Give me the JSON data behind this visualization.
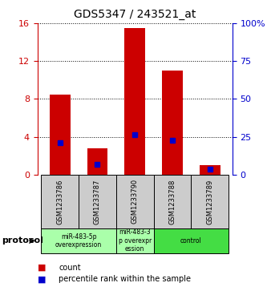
{
  "title": "GDS5347 / 243521_at",
  "samples": [
    "GSM1233786",
    "GSM1233787",
    "GSM1233790",
    "GSM1233788",
    "GSM1233789"
  ],
  "red_bar_heights": [
    8.5,
    2.8,
    15.5,
    11.0,
    1.0
  ],
  "blue_marker_values": [
    3.35,
    1.05,
    4.2,
    3.65,
    0.55
  ],
  "left_ylim": [
    0,
    16
  ],
  "left_yticks": [
    0,
    4,
    8,
    12,
    16
  ],
  "right_ylim": [
    0,
    100
  ],
  "right_yticks": [
    0,
    25,
    50,
    75,
    100
  ],
  "right_yticklabels": [
    "0",
    "25",
    "50",
    "75",
    "100%"
  ],
  "left_ytick_color": "#cc0000",
  "right_ytick_color": "#0000cc",
  "bar_color": "#cc0000",
  "marker_color": "#0000cc",
  "gray_color": "#cccccc",
  "groups": [
    {
      "start": 0,
      "end": 1,
      "label": "miR-483-5p\noverexpression",
      "color": "#aaffaa"
    },
    {
      "start": 2,
      "end": 2,
      "label": "miR-483-3\np overexpr\nession",
      "color": "#aaffaa"
    },
    {
      "start": 3,
      "end": 4,
      "label": "control",
      "color": "#44dd44"
    }
  ],
  "protocol_label": "protocol",
  "legend_items": [
    {
      "color": "#cc0000",
      "label": "count"
    },
    {
      "color": "#0000cc",
      "label": "percentile rank within the sample"
    }
  ],
  "background_color": "#ffffff",
  "bar_width": 0.55
}
